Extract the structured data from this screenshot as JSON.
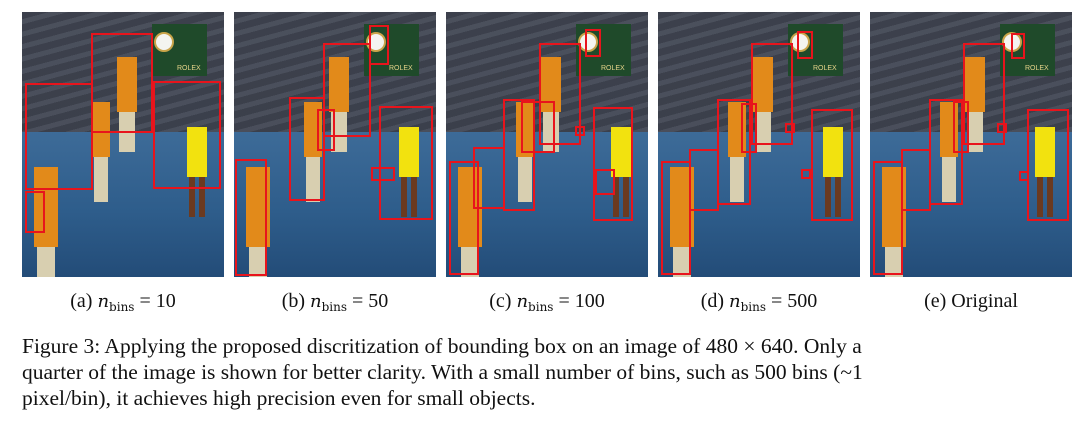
{
  "panels": [
    {
      "letter": "(a)",
      "var": "n",
      "sub": "bins",
      "eq": "=",
      "value": "10"
    },
    {
      "letter": "(b)",
      "var": "n",
      "sub": "bins",
      "eq": "=",
      "value": "50"
    },
    {
      "letter": "(c)",
      "var": "n",
      "sub": "bins",
      "eq": "=",
      "value": "100"
    },
    {
      "letter": "(d)",
      "var": "n",
      "sub": "bins",
      "eq": "=",
      "value": "500"
    },
    {
      "letter": "(e)",
      "var": "",
      "sub": "",
      "eq": "",
      "value": "Original"
    }
  ],
  "figure_caption": {
    "line1": "Figure 3:  Applying the proposed discritization of bounding box on an image of 480 × 640. Only a",
    "line2": "quarter of the image is shown for better clarity. With a small number of bins, such as 500 bins (~1",
    "line3": "pixel/bin), it achieves high precision even for small objects."
  },
  "logo_text": "ROLEX",
  "colors": {
    "box": "#e8141c",
    "shirt": "#e28a1a",
    "dress": "#f2e20f",
    "court": "#2e5d8b"
  }
}
